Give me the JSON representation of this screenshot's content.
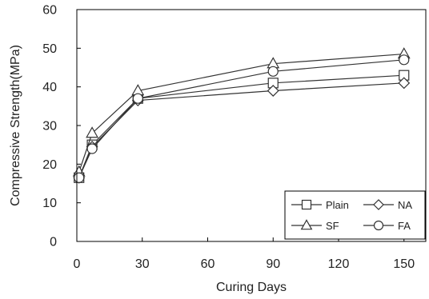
{
  "chart_data": {
    "type": "line",
    "title": "",
    "xlabel": "Curing Days",
    "ylabel": "Compressive Strength(MPa)",
    "xlim": [
      0,
      160
    ],
    "ylim": [
      0,
      60
    ],
    "x_ticks": [
      0,
      30,
      60,
      90,
      120,
      150
    ],
    "y_ticks": [
      0,
      10,
      20,
      30,
      40,
      50,
      60
    ],
    "grid": false,
    "legend_position": "bottom-right",
    "x": [
      1,
      7,
      28,
      90,
      150
    ],
    "series": [
      {
        "name": "Plain",
        "marker": "square",
        "values": [
          16.5,
          25.0,
          37.0,
          41.0,
          43.0
        ]
      },
      {
        "name": "NA",
        "marker": "diamond",
        "values": [
          16.5,
          24.5,
          36.5,
          39.0,
          41.0
        ]
      },
      {
        "name": "SF",
        "marker": "triangle",
        "values": [
          18.0,
          28.0,
          39.0,
          46.0,
          48.5
        ]
      },
      {
        "name": "FA",
        "marker": "circle",
        "values": [
          16.5,
          24.0,
          37.0,
          44.0,
          47.0
        ]
      }
    ],
    "colors": {
      "line": "#333333",
      "marker_fill": "#ffffff",
      "axis": "#000000"
    }
  }
}
